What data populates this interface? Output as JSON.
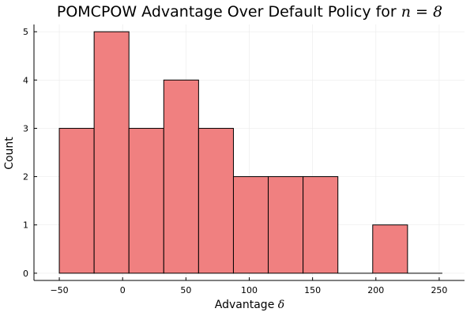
{
  "chart_data": {
    "type": "bar",
    "title": {
      "text": "POMCPOW Advantage Over Default Policy for ",
      "math": "n = 8"
    },
    "xlabel": {
      "text": "Advantage ",
      "math": "δ"
    },
    "ylabel": "Count",
    "bin_edges": [
      -50,
      -22.5,
      5,
      32.5,
      60,
      87.5,
      115,
      142.5,
      170,
      197.5,
      225,
      252.5
    ],
    "values": [
      3,
      5,
      3,
      4,
      3,
      2,
      2,
      2,
      0,
      1,
      0
    ],
    "xlim": [
      -70,
      270
    ],
    "ylim": [
      -0.15,
      5.15
    ],
    "x_ticks": [
      -50,
      0,
      50,
      100,
      150,
      200,
      250
    ],
    "x_tick_labels": [
      "−50",
      "0",
      "50",
      "100",
      "150",
      "200",
      "250"
    ],
    "y_ticks": [
      0,
      1,
      2,
      3,
      4,
      5
    ],
    "y_tick_labels": [
      "0",
      "1",
      "2",
      "3",
      "4",
      "5"
    ],
    "grid": true,
    "legend": "none",
    "colors": {
      "bar_fill": "#f08080",
      "bar_edge": "#000000",
      "grid": "#ececec",
      "axis": "#000000"
    }
  }
}
